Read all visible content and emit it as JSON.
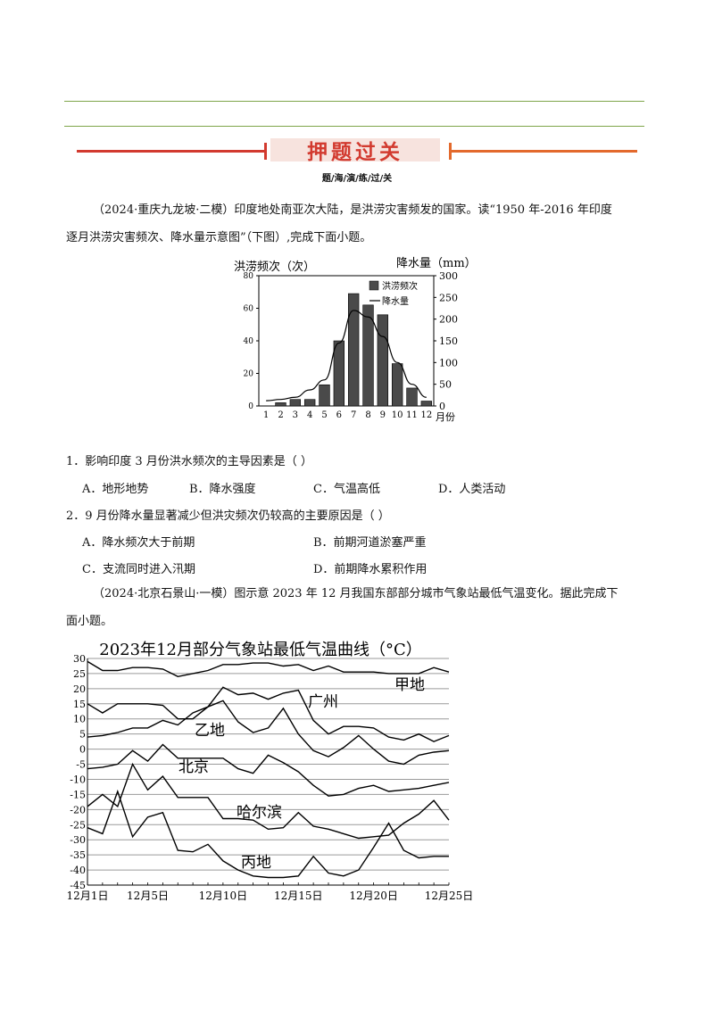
{
  "header": {
    "banner_title": "押题过关",
    "subtitle": "题/海/演/练/过/关"
  },
  "intro1": {
    "line1": "（2024·重庆九龙坡·二模）印度地处南亚次大陆，是洪涝灾害频发的国家。读“1950 年-2016 年印度",
    "line2": "逐月洪涝灾害频次、降水量示意图”（下图）,完成下面小题。"
  },
  "chart1": {
    "type": "bar",
    "left_axis_title": "洪涝频次（次）",
    "right_axis_title": "降水量（mm）",
    "x_unit": "月份",
    "legend": [
      "洪涝频次",
      "降水量"
    ],
    "categories": [
      "1",
      "2",
      "3",
      "4",
      "5",
      "6",
      "7",
      "8",
      "9",
      "10",
      "11",
      "12"
    ],
    "left_ticks": [
      "0",
      "20",
      "40",
      "60",
      "80"
    ],
    "right_ticks": [
      "0",
      "50",
      "100",
      "150",
      "200",
      "250",
      "300"
    ],
    "series": [
      {
        "name": "洪涝频次",
        "values": [
          0,
          2,
          4,
          4,
          13,
          40,
          69,
          62,
          56,
          26,
          11,
          3
        ]
      },
      {
        "name": "降水量",
        "values": [
          12,
          15,
          20,
          37,
          60,
          145,
          220,
          205,
          160,
          100,
          50,
          20
        ]
      }
    ],
    "ylim_left": [
      0,
      80
    ],
    "ylim_right": [
      0,
      300
    ],
    "colors": {
      "bar": "#4a4a4a"
    }
  },
  "question1": {
    "stem": "1．影响印度 3 月份洪水频次的主导因素是（    ）",
    "options": [
      "A．地形地势",
      "B．降水强度",
      "C．气温高低",
      "D．人类活动"
    ]
  },
  "question2": {
    "stem": "2．9 月份降水量显著减少但洪灾频次仍较高的主要原因是（    ）",
    "options": [
      "A．降水频次大于前期",
      "B．前期河道淤塞严重",
      "C．支流同时进入汛期",
      "D．前期降水累积作用"
    ]
  },
  "intro2": {
    "line1": "（2024·北京石景山·一模）图示意 2023 年 12 月我国东部部分城市气象站最低气温变化。据此完成下",
    "line2": "面小题。"
  },
  "chart2": {
    "type": "line",
    "title": "2023年12月部分气象站最低气温曲线（°C）",
    "y_ticks": [
      "30",
      "25",
      "20",
      "15",
      "10",
      "5",
      "0",
      "-5",
      "-10",
      "-15",
      "-20",
      "-25",
      "-30",
      "-35",
      "-40",
      "-45"
    ],
    "ylim": [
      -45,
      30
    ],
    "x_tick_labels": [
      "12月1日",
      "12月5日",
      "12月10日",
      "12月15日",
      "12月20日",
      "12月25日"
    ],
    "x_tick_days": [
      1,
      5,
      10,
      15,
      20,
      25
    ],
    "series": [
      {
        "name": "甲地",
        "x": [
          1,
          2,
          3,
          4,
          5,
          6,
          7,
          8,
          9,
          10,
          11,
          12,
          13,
          14,
          15,
          16,
          17,
          18,
          19,
          20,
          21,
          22,
          23,
          24,
          25
        ],
        "values": [
          29,
          26,
          26,
          27,
          27,
          26.5,
          24,
          25,
          26,
          28,
          28,
          28.5,
          28.5,
          27.5,
          28,
          26,
          27.5,
          25.5,
          25.5,
          25.5,
          25,
          25,
          25,
          27,
          25.5
        ]
      },
      {
        "name": "广州",
        "x": [
          1,
          2,
          3,
          4,
          5,
          6,
          7,
          8,
          9,
          10,
          11,
          12,
          13,
          14,
          15,
          16,
          17,
          18,
          19,
          20,
          21,
          22,
          23,
          24,
          25
        ],
        "values": [
          15,
          12,
          15,
          15,
          15,
          14.5,
          10,
          10,
          14,
          20.5,
          18,
          18.5,
          16.5,
          18.5,
          19.5,
          9.5,
          5,
          7.5,
          7.5,
          7,
          4,
          3,
          5,
          2.5,
          4.5
        ]
      },
      {
        "name": "乙地",
        "x": [
          1,
          2,
          3,
          4,
          5,
          6,
          7,
          8,
          9,
          10,
          11,
          12,
          13,
          14,
          15,
          16,
          17,
          18,
          19,
          20,
          21,
          22,
          23,
          24,
          25
        ],
        "values": [
          4,
          4.5,
          5.5,
          7,
          7,
          9.5,
          8,
          12,
          14,
          16,
          9,
          5.5,
          7,
          13.5,
          5,
          -0.5,
          -2.5,
          0.5,
          4.5,
          0,
          -4,
          -5,
          -2,
          -1,
          -0.5
        ]
      },
      {
        "name": "北京",
        "x": [
          1,
          2,
          3,
          4,
          5,
          6,
          7,
          8,
          9,
          10,
          11,
          12,
          13,
          14,
          15,
          16,
          17,
          18,
          19,
          20,
          21,
          22,
          23,
          24,
          25
        ],
        "values": [
          -6.5,
          -6,
          -5,
          -0.5,
          -4,
          1.5,
          -3,
          -3,
          -3,
          -3,
          -6.5,
          -8,
          -2,
          -4.5,
          -7.5,
          -12,
          -15.5,
          -15,
          -13,
          -12,
          -14,
          -13.5,
          -13,
          -12,
          -11
        ]
      },
      {
        "name": "哈尔滨",
        "x": [
          1,
          2,
          3,
          4,
          5,
          6,
          7,
          8,
          9,
          10,
          11,
          12,
          13,
          14,
          15,
          16,
          17,
          18,
          19,
          20,
          21,
          22,
          23,
          24,
          25
        ],
        "values": [
          -19,
          -15,
          -19,
          -5,
          -13.5,
          -9,
          -16,
          -16,
          -16,
          -23,
          -23,
          -23.5,
          -26.5,
          -26,
          -21,
          -25.5,
          -26.5,
          -28,
          -29.5,
          -29,
          -28.5,
          -24.5,
          -21.5,
          -17,
          -23.5
        ]
      },
      {
        "name": "丙地",
        "x": [
          1,
          2,
          3,
          4,
          5,
          6,
          7,
          8,
          9,
          10,
          11,
          12,
          13,
          14,
          15,
          16,
          17,
          18,
          19,
          20,
          21,
          22,
          23,
          24,
          25
        ],
        "values": [
          -26,
          -28,
          -14,
          -29,
          -22.5,
          -21,
          -33.5,
          -34,
          -31.5,
          -37,
          -40,
          -42,
          -42.5,
          -42.5,
          -42,
          -35.5,
          -41,
          -42,
          -40,
          -32.5,
          -24.5,
          -33.5,
          -36,
          -35.5,
          -35.5
        ]
      }
    ],
    "label_texts": {
      "jia": "甲地",
      "guangzhou": "广州",
      "yi": "乙地",
      "beijing": "北京",
      "haerbin": "哈尔滨",
      "bing": "丙地"
    }
  }
}
